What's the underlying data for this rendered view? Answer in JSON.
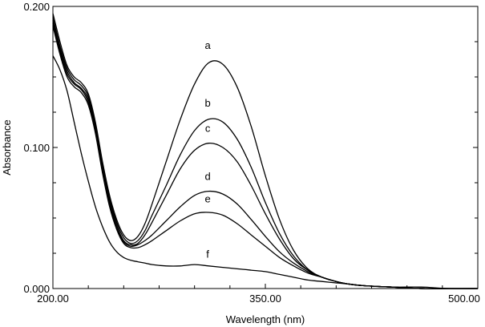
{
  "chart_data": {
    "type": "line",
    "xlabel": "Wavelength (nm)",
    "ylabel": "Absorbance",
    "xlim": [
      200,
      500
    ],
    "ylim": [
      0,
      0.2
    ],
    "x_ticks": [
      200,
      350,
      500
    ],
    "x_tick_labels": [
      "200.00",
      "350.00",
      "500.00"
    ],
    "y_ticks": [
      0,
      0.1,
      0.2
    ],
    "y_tick_labels": [
      "0.000",
      "0.100",
      "0.200"
    ],
    "y_minor_ticks": [
      0.025,
      0.05,
      0.075,
      0.125,
      0.15,
      0.175
    ],
    "grid": false,
    "series": [
      {
        "name": "a",
        "x": [
          200,
          205,
          210,
          215,
          220,
          225,
          230,
          235,
          240,
          245,
          250,
          255,
          260,
          265,
          270,
          280,
          290,
          300,
          310,
          320,
          330,
          340,
          350,
          360,
          370,
          380,
          390,
          400,
          410,
          420,
          440,
          460,
          480,
          500
        ],
        "y": [
          0.195,
          0.175,
          0.158,
          0.15,
          0.146,
          0.138,
          0.118,
          0.09,
          0.066,
          0.049,
          0.038,
          0.034,
          0.037,
          0.046,
          0.06,
          0.09,
          0.12,
          0.145,
          0.16,
          0.159,
          0.143,
          0.115,
          0.08,
          0.049,
          0.027,
          0.014,
          0.008,
          0.005,
          0.003,
          0.002,
          0.001,
          0.0,
          0.0,
          0.0
        ]
      },
      {
        "name": "b",
        "x": [
          200,
          205,
          210,
          215,
          220,
          225,
          230,
          235,
          240,
          245,
          250,
          255,
          260,
          265,
          270,
          280,
          290,
          300,
          310,
          320,
          330,
          340,
          350,
          360,
          370,
          380,
          390,
          400,
          410,
          420,
          440,
          460,
          480,
          500
        ],
        "y": [
          0.192,
          0.172,
          0.156,
          0.148,
          0.144,
          0.136,
          0.116,
          0.088,
          0.064,
          0.047,
          0.036,
          0.032,
          0.034,
          0.041,
          0.052,
          0.073,
          0.095,
          0.112,
          0.12,
          0.118,
          0.106,
          0.086,
          0.061,
          0.039,
          0.023,
          0.013,
          0.008,
          0.005,
          0.003,
          0.002,
          0.001,
          0.0,
          0.0,
          0.0
        ]
      },
      {
        "name": "c",
        "x": [
          200,
          205,
          210,
          215,
          220,
          225,
          230,
          235,
          240,
          245,
          250,
          255,
          260,
          265,
          270,
          280,
          290,
          300,
          310,
          320,
          330,
          340,
          350,
          360,
          370,
          380,
          390,
          400,
          410,
          420,
          440,
          460,
          480,
          500
        ],
        "y": [
          0.19,
          0.17,
          0.154,
          0.146,
          0.142,
          0.134,
          0.114,
          0.086,
          0.062,
          0.045,
          0.034,
          0.031,
          0.032,
          0.038,
          0.047,
          0.066,
          0.085,
          0.098,
          0.103,
          0.1,
          0.09,
          0.073,
          0.053,
          0.035,
          0.021,
          0.013,
          0.008,
          0.005,
          0.003,
          0.002,
          0.001,
          0.0,
          0.0,
          0.0
        ]
      },
      {
        "name": "d",
        "x": [
          200,
          205,
          210,
          215,
          220,
          225,
          230,
          235,
          240,
          245,
          250,
          255,
          260,
          265,
          270,
          280,
          290,
          300,
          310,
          320,
          330,
          340,
          350,
          360,
          370,
          380,
          390,
          400,
          410,
          420,
          440,
          460,
          480,
          500
        ],
        "y": [
          0.188,
          0.168,
          0.152,
          0.145,
          0.141,
          0.132,
          0.112,
          0.084,
          0.06,
          0.043,
          0.033,
          0.03,
          0.031,
          0.034,
          0.038,
          0.048,
          0.058,
          0.066,
          0.069,
          0.067,
          0.06,
          0.049,
          0.037,
          0.026,
          0.018,
          0.012,
          0.008,
          0.005,
          0.003,
          0.002,
          0.001,
          0.0,
          0.0,
          0.0
        ]
      },
      {
        "name": "e",
        "x": [
          200,
          205,
          210,
          215,
          220,
          225,
          230,
          235,
          240,
          245,
          250,
          255,
          260,
          265,
          270,
          280,
          290,
          300,
          310,
          320,
          330,
          340,
          350,
          360,
          370,
          380,
          390,
          400,
          410,
          420,
          440,
          460,
          480,
          500
        ],
        "y": [
          0.186,
          0.166,
          0.15,
          0.143,
          0.139,
          0.13,
          0.11,
          0.082,
          0.058,
          0.042,
          0.032,
          0.029,
          0.029,
          0.031,
          0.034,
          0.041,
          0.048,
          0.053,
          0.054,
          0.052,
          0.046,
          0.038,
          0.03,
          0.022,
          0.016,
          0.011,
          0.008,
          0.005,
          0.003,
          0.002,
          0.001,
          0.0,
          0.0,
          0.0
        ]
      },
      {
        "name": "f",
        "x": [
          200,
          205,
          210,
          215,
          220,
          225,
          230,
          235,
          240,
          245,
          250,
          255,
          260,
          265,
          270,
          280,
          290,
          300,
          310,
          320,
          330,
          340,
          350,
          360,
          370,
          380,
          390,
          400,
          410,
          420,
          440,
          460,
          480,
          500
        ],
        "y": [
          0.165,
          0.155,
          0.14,
          0.118,
          0.096,
          0.076,
          0.058,
          0.044,
          0.033,
          0.026,
          0.022,
          0.02,
          0.019,
          0.018,
          0.017,
          0.016,
          0.016,
          0.017,
          0.016,
          0.015,
          0.014,
          0.013,
          0.012,
          0.01,
          0.008,
          0.006,
          0.005,
          0.004,
          0.003,
          0.002,
          0.001,
          0.001,
          0.0,
          0.0
        ]
      }
    ],
    "curve_labels": [
      {
        "text": "a",
        "x": 311,
        "y": 0.17
      },
      {
        "text": "b",
        "x": 311,
        "y": 0.129
      },
      {
        "text": "c",
        "x": 311,
        "y": 0.111
      },
      {
        "text": "d",
        "x": 311,
        "y": 0.077
      },
      {
        "text": "e",
        "x": 311,
        "y": 0.061
      },
      {
        "text": "f",
        "x": 311,
        "y": 0.022
      }
    ]
  }
}
